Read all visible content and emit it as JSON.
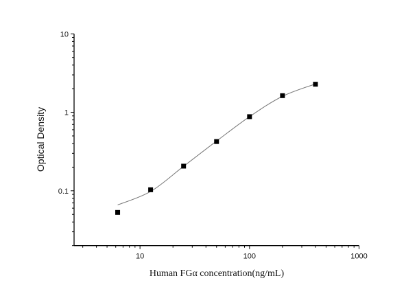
{
  "chart_data": {
    "type": "scatter",
    "title": "",
    "xlabel": "Human FGα   concentration(ng/mL)",
    "ylabel": "Optical Density",
    "x_scale": "log",
    "y_scale": "log",
    "xlim": [
      2.5,
      1000
    ],
    "ylim": [
      0.02,
      10
    ],
    "x_ticks": [
      {
        "value": 10,
        "label": "10"
      },
      {
        "value": 100,
        "label": "100"
      },
      {
        "value": 1000,
        "label": "1000"
      }
    ],
    "y_ticks": [
      {
        "value": 0.1,
        "label": "0.1"
      },
      {
        "value": 1,
        "label": "1"
      },
      {
        "value": 10,
        "label": "10"
      }
    ],
    "grid": false,
    "series": [
      {
        "marker": "square",
        "color": "#000000",
        "x": [
          6.25,
          12.5,
          25,
          50,
          100,
          200,
          400
        ],
        "y": [
          0.053,
          0.103,
          0.206,
          0.424,
          0.88,
          1.63,
          2.28
        ]
      }
    ],
    "fit_curve": {
      "color": "#777777",
      "x": [
        6.25,
        12.5,
        25,
        50,
        100,
        200,
        400
      ],
      "y": [
        0.066,
        0.098,
        0.205,
        0.43,
        0.88,
        1.6,
        2.3
      ]
    }
  }
}
